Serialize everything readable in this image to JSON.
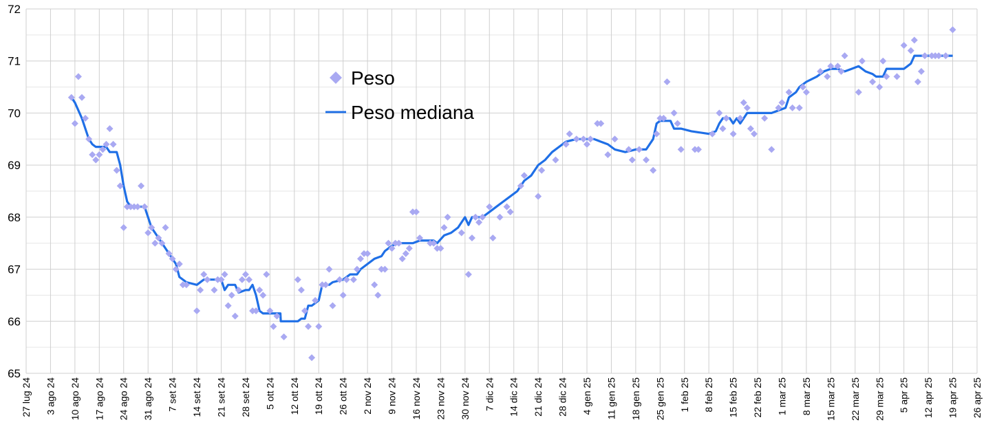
{
  "chart_data": {
    "type": "scatter",
    "title": "",
    "xlabel": "",
    "ylabel": "",
    "x_unit": "days since 27 lug 24",
    "xlim": [
      0,
      273
    ],
    "ylim": [
      65,
      72
    ],
    "y_ticks": [
      65,
      66,
      67,
      68,
      69,
      70,
      71,
      72
    ],
    "x_tick_labels": [
      "27 lug 24",
      "3 ago 24",
      "10 ago 24",
      "17 ago 24",
      "24 ago 24",
      "31 ago 24",
      "7 set 24",
      "14 set 24",
      "21 set 24",
      "28 set 24",
      "5 ott 24",
      "12 ott 24",
      "19 ott 24",
      "26 ott 24",
      "2 nov 24",
      "9 nov 24",
      "16 nov 24",
      "23 nov 24",
      "30 nov 24",
      "7 dic 24",
      "14 dic 24",
      "21 dic 24",
      "28 dic 24",
      "4 gen 25",
      "11 gen 25",
      "18 gen 25",
      "25 gen 25",
      "1 feb 25",
      "8 feb 25",
      "15 feb 25",
      "22 feb 25",
      "1 mar 25",
      "8 mar 25",
      "15 mar 25",
      "22 mar 25",
      "29 mar 25",
      "5 apr 25",
      "12 apr 25",
      "19 apr 25",
      "26 apr 25"
    ],
    "grid": true,
    "legend_position": "top-center",
    "colors": {
      "peso": "#a9a9f2",
      "mediana": "#1f6fe6",
      "grid": "#cfcfcf",
      "minor_grid": "#e6e6e6"
    },
    "series": [
      {
        "name": "Peso",
        "kind": "scatter",
        "points": [
          [
            13,
            70.3
          ],
          [
            14,
            69.8
          ],
          [
            15,
            70.7
          ],
          [
            16,
            70.3
          ],
          [
            17,
            69.9
          ],
          [
            18,
            69.5
          ],
          [
            19,
            69.2
          ],
          [
            20,
            69.1
          ],
          [
            21,
            69.2
          ],
          [
            22,
            69.3
          ],
          [
            23,
            69.4
          ],
          [
            24,
            69.7
          ],
          [
            25,
            69.4
          ],
          [
            26,
            68.9
          ],
          [
            27,
            68.6
          ],
          [
            28,
            67.8
          ],
          [
            29,
            68.2
          ],
          [
            30,
            68.2
          ],
          [
            31,
            68.2
          ],
          [
            32,
            68.2
          ],
          [
            33,
            68.6
          ],
          [
            34,
            68.2
          ],
          [
            35,
            67.7
          ],
          [
            36,
            67.8
          ],
          [
            37,
            67.5
          ],
          [
            38,
            67.6
          ],
          [
            39,
            67.5
          ],
          [
            40,
            67.8
          ],
          [
            41,
            67.3
          ],
          [
            42,
            67.2
          ],
          [
            43,
            67.0
          ],
          [
            44,
            67.1
          ],
          [
            45,
            66.7
          ],
          [
            46,
            66.7
          ],
          [
            49,
            66.2
          ],
          [
            50,
            66.6
          ],
          [
            51,
            66.9
          ],
          [
            52,
            66.8
          ],
          [
            54,
            66.6
          ],
          [
            55,
            66.8
          ],
          [
            56,
            66.8
          ],
          [
            57,
            66.9
          ],
          [
            58,
            66.3
          ],
          [
            59,
            66.5
          ],
          [
            60,
            66.1
          ],
          [
            61,
            66.6
          ],
          [
            62,
            66.8
          ],
          [
            63,
            66.9
          ],
          [
            64,
            66.8
          ],
          [
            65,
            66.2
          ],
          [
            66,
            66.2
          ],
          [
            67,
            66.6
          ],
          [
            68,
            66.5
          ],
          [
            69,
            66.9
          ],
          [
            70,
            66.2
          ],
          [
            71,
            65.9
          ],
          [
            72,
            66.1
          ],
          [
            74,
            65.7
          ],
          [
            78,
            66.8
          ],
          [
            79,
            66.6
          ],
          [
            80,
            66.2
          ],
          [
            81,
            65.9
          ],
          [
            82,
            65.3
          ],
          [
            83,
            66.4
          ],
          [
            84,
            65.9
          ],
          [
            85,
            66.7
          ],
          [
            86,
            66.7
          ],
          [
            87,
            67.0
          ],
          [
            88,
            66.3
          ],
          [
            90,
            66.8
          ],
          [
            91,
            66.5
          ],
          [
            92,
            66.8
          ],
          [
            94,
            66.8
          ],
          [
            95,
            67.0
          ],
          [
            96,
            67.2
          ],
          [
            97,
            67.3
          ],
          [
            98,
            67.3
          ],
          [
            100,
            66.7
          ],
          [
            101,
            66.5
          ],
          [
            102,
            67.0
          ],
          [
            103,
            67.0
          ],
          [
            104,
            67.5
          ],
          [
            105,
            67.4
          ],
          [
            106,
            67.5
          ],
          [
            107,
            67.5
          ],
          [
            108,
            67.2
          ],
          [
            109,
            67.3
          ],
          [
            110,
            67.4
          ],
          [
            111,
            68.1
          ],
          [
            112,
            68.1
          ],
          [
            113,
            67.6
          ],
          [
            116,
            67.5
          ],
          [
            117,
            67.5
          ],
          [
            118,
            67.4
          ],
          [
            119,
            67.4
          ],
          [
            120,
            67.8
          ],
          [
            121,
            68.0
          ],
          [
            125,
            67.7
          ],
          [
            127,
            66.9
          ],
          [
            128,
            67.6
          ],
          [
            129,
            68.0
          ],
          [
            130,
            67.9
          ],
          [
            131,
            68.0
          ],
          [
            133,
            68.2
          ],
          [
            134,
            67.6
          ],
          [
            136,
            68.0
          ],
          [
            138,
            68.2
          ],
          [
            139,
            68.1
          ],
          [
            142,
            68.6
          ],
          [
            143,
            68.8
          ],
          [
            147,
            68.4
          ],
          [
            148,
            68.9
          ],
          [
            152,
            69.1
          ],
          [
            155,
            69.4
          ],
          [
            156,
            69.6
          ],
          [
            158,
            69.5
          ],
          [
            160,
            69.5
          ],
          [
            161,
            69.4
          ],
          [
            162,
            69.5
          ],
          [
            164,
            69.8
          ],
          [
            165,
            69.8
          ],
          [
            167,
            69.2
          ],
          [
            169,
            69.5
          ],
          [
            173,
            69.3
          ],
          [
            174,
            69.1
          ],
          [
            176,
            69.3
          ],
          [
            178,
            69.1
          ],
          [
            180,
            68.9
          ],
          [
            181,
            69.6
          ],
          [
            182,
            69.9
          ],
          [
            183,
            69.9
          ],
          [
            184,
            70.6
          ],
          [
            186,
            70.0
          ],
          [
            187,
            69.8
          ],
          [
            188,
            69.3
          ],
          [
            192,
            69.3
          ],
          [
            193,
            69.3
          ],
          [
            197,
            69.6
          ],
          [
            199,
            70.0
          ],
          [
            200,
            69.7
          ],
          [
            201,
            69.9
          ],
          [
            203,
            69.6
          ],
          [
            205,
            69.9
          ],
          [
            206,
            70.2
          ],
          [
            207,
            70.1
          ],
          [
            208,
            69.7
          ],
          [
            209,
            69.6
          ],
          [
            212,
            69.9
          ],
          [
            214,
            69.3
          ],
          [
            216,
            70.1
          ],
          [
            217,
            70.2
          ],
          [
            219,
            70.4
          ],
          [
            220,
            70.1
          ],
          [
            222,
            70.1
          ],
          [
            223,
            70.5
          ],
          [
            224,
            70.4
          ],
          [
            228,
            70.8
          ],
          [
            230,
            70.7
          ],
          [
            231,
            70.9
          ],
          [
            233,
            70.9
          ],
          [
            234,
            70.8
          ],
          [
            235,
            71.1
          ],
          [
            239,
            70.4
          ],
          [
            240,
            71.0
          ],
          [
            243,
            70.6
          ],
          [
            245,
            70.5
          ],
          [
            246,
            71.0
          ],
          [
            247,
            70.7
          ],
          [
            250,
            70.7
          ],
          [
            252,
            71.3
          ],
          [
            254,
            71.2
          ],
          [
            255,
            71.4
          ],
          [
            256,
            70.6
          ],
          [
            257,
            70.8
          ],
          [
            258,
            71.1
          ],
          [
            260,
            71.1
          ],
          [
            261,
            71.1
          ],
          [
            262,
            71.1
          ],
          [
            264,
            71.1
          ],
          [
            266,
            71.6
          ]
        ]
      },
      {
        "name": "Peso mediana",
        "kind": "line",
        "points": [
          [
            13,
            70.3
          ],
          [
            14,
            70.2
          ],
          [
            16,
            69.9
          ],
          [
            18,
            69.5
          ],
          [
            19,
            69.4
          ],
          [
            20,
            69.35
          ],
          [
            23,
            69.35
          ],
          [
            24,
            69.25
          ],
          [
            26,
            69.25
          ],
          [
            27,
            69.0
          ],
          [
            28,
            68.6
          ],
          [
            29,
            68.3
          ],
          [
            30,
            68.2
          ],
          [
            34,
            68.2
          ],
          [
            36,
            67.8
          ],
          [
            38,
            67.6
          ],
          [
            40,
            67.4
          ],
          [
            43,
            67.1
          ],
          [
            44,
            66.85
          ],
          [
            46,
            66.75
          ],
          [
            49,
            66.7
          ],
          [
            51,
            66.8
          ],
          [
            56,
            66.8
          ],
          [
            57,
            66.6
          ],
          [
            58,
            66.7
          ],
          [
            60,
            66.7
          ],
          [
            61,
            66.55
          ],
          [
            63,
            66.6
          ],
          [
            64,
            66.6
          ],
          [
            65,
            66.7
          ],
          [
            66,
            66.5
          ],
          [
            67,
            66.2
          ],
          [
            68,
            66.15
          ],
          [
            73,
            66.15
          ],
          [
            73.1,
            66.0
          ],
          [
            78,
            66.0
          ],
          [
            79,
            66.05
          ],
          [
            80,
            66.05
          ],
          [
            81,
            66.3
          ],
          [
            82,
            66.3
          ],
          [
            84,
            66.4
          ],
          [
            85,
            66.7
          ],
          [
            87,
            66.7
          ],
          [
            88,
            66.75
          ],
          [
            91,
            66.8
          ],
          [
            93,
            66.9
          ],
          [
            95,
            66.9
          ],
          [
            96,
            67.0
          ],
          [
            98,
            67.1
          ],
          [
            100,
            67.2
          ],
          [
            102,
            67.25
          ],
          [
            103,
            67.35
          ],
          [
            105,
            67.45
          ],
          [
            107,
            67.5
          ],
          [
            111,
            67.5
          ],
          [
            113,
            67.55
          ],
          [
            117,
            67.55
          ],
          [
            118,
            67.5
          ],
          [
            120,
            67.65
          ],
          [
            122,
            67.7
          ],
          [
            124,
            67.8
          ],
          [
            126,
            68.0
          ],
          [
            127,
            67.85
          ],
          [
            128,
            68.0
          ],
          [
            131,
            68.0
          ],
          [
            133,
            68.1
          ],
          [
            135,
            68.2
          ],
          [
            137,
            68.3
          ],
          [
            139,
            68.4
          ],
          [
            141,
            68.5
          ],
          [
            143,
            68.7
          ],
          [
            145,
            68.8
          ],
          [
            147,
            69.0
          ],
          [
            149,
            69.1
          ],
          [
            151,
            69.25
          ],
          [
            153,
            69.35
          ],
          [
            155,
            69.45
          ],
          [
            158,
            69.5
          ],
          [
            163,
            69.5
          ],
          [
            165,
            69.45
          ],
          [
            167,
            69.4
          ],
          [
            169,
            69.3
          ],
          [
            172,
            69.25
          ],
          [
            175,
            69.3
          ],
          [
            178,
            69.3
          ],
          [
            180,
            69.5
          ],
          [
            181,
            69.8
          ],
          [
            182,
            69.85
          ],
          [
            185,
            69.85
          ],
          [
            186,
            69.7
          ],
          [
            188,
            69.7
          ],
          [
            191,
            69.65
          ],
          [
            196,
            69.6
          ],
          [
            198,
            69.65
          ],
          [
            199,
            69.8
          ],
          [
            200,
            69.9
          ],
          [
            202,
            69.9
          ],
          [
            203,
            69.8
          ],
          [
            204,
            69.9
          ],
          [
            205,
            69.8
          ],
          [
            207,
            70.0
          ],
          [
            214,
            70.0
          ],
          [
            216,
            70.05
          ],
          [
            218,
            70.1
          ],
          [
            219,
            70.3
          ],
          [
            221,
            70.4
          ],
          [
            222,
            70.5
          ],
          [
            224,
            70.6
          ],
          [
            227,
            70.7
          ],
          [
            229,
            70.8
          ],
          [
            231,
            70.85
          ],
          [
            233,
            70.85
          ],
          [
            235,
            70.8
          ],
          [
            237,
            70.85
          ],
          [
            239,
            70.9
          ],
          [
            241,
            70.8
          ],
          [
            243,
            70.75
          ],
          [
            244,
            70.7
          ],
          [
            246,
            70.7
          ],
          [
            247,
            70.85
          ],
          [
            252,
            70.85
          ],
          [
            253,
            70.9
          ],
          [
            254,
            70.95
          ],
          [
            255,
            71.1
          ],
          [
            260,
            71.1
          ],
          [
            266,
            71.1
          ]
        ]
      }
    ]
  }
}
